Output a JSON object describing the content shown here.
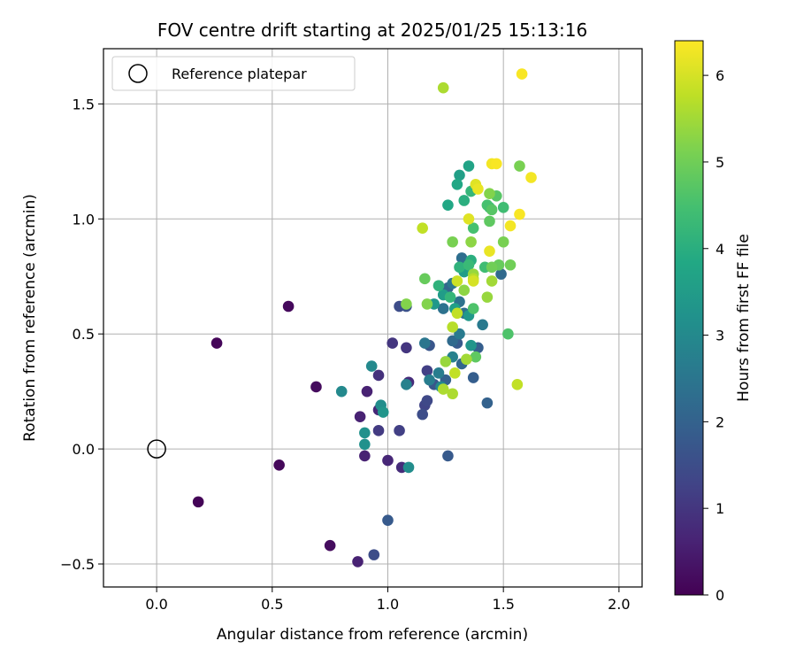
{
  "chart_data": {
    "type": "scatter",
    "title": "FOV centre drift starting at 2025/01/25 15:13:16",
    "xlabel": "Angular distance from reference (arcmin)",
    "ylabel": "Rotation from reference (arcmin)",
    "xlim": [
      -0.23,
      2.1
    ],
    "ylim": [
      -0.6,
      1.74
    ],
    "xticks": [
      0.0,
      0.5,
      1.0,
      1.5,
      2.0
    ],
    "xtick_labels": [
      "0.0",
      "0.5",
      "1.0",
      "1.5",
      "2.0"
    ],
    "yticks": [
      -0.5,
      0.0,
      0.5,
      1.0,
      1.5
    ],
    "ytick_labels": [
      "−0.5",
      "0.0",
      "0.5",
      "1.0",
      "1.5"
    ],
    "grid": true,
    "legend": {
      "position": "top-left",
      "label": "Reference platepar"
    },
    "reference_point": {
      "x": 0.0,
      "y": 0.0
    },
    "colorbar": {
      "label": "Hours from first FF file",
      "range": [
        0,
        6.4
      ],
      "ticks": [
        0,
        1,
        2,
        3,
        4,
        5,
        6
      ],
      "tick_labels": [
        "0",
        "1",
        "2",
        "3",
        "4",
        "5",
        "6"
      ],
      "colormap": "viridis"
    },
    "points": [
      {
        "x": 0.18,
        "y": -0.23,
        "h": 0.05
      },
      {
        "x": 0.26,
        "y": 0.46,
        "h": 0.1
      },
      {
        "x": 0.53,
        "y": -0.07,
        "h": 0.12
      },
      {
        "x": 0.57,
        "y": 0.62,
        "h": 0.15
      },
      {
        "x": 0.69,
        "y": 0.27,
        "h": 0.2
      },
      {
        "x": 0.75,
        "y": -0.42,
        "h": 0.2
      },
      {
        "x": 0.87,
        "y": -0.49,
        "h": 0.6
      },
      {
        "x": 0.88,
        "y": 0.14,
        "h": 0.6
      },
      {
        "x": 0.9,
        "y": -0.03,
        "h": 0.6
      },
      {
        "x": 0.91,
        "y": 0.25,
        "h": 0.6
      },
      {
        "x": 0.96,
        "y": 0.17,
        "h": 0.7
      },
      {
        "x": 1.0,
        "y": -0.05,
        "h": 0.7
      },
      {
        "x": 1.06,
        "y": -0.08,
        "h": 0.8
      },
      {
        "x": 1.09,
        "y": 0.29,
        "h": 0.8
      },
      {
        "x": 0.96,
        "y": 0.32,
        "h": 0.9
      },
      {
        "x": 1.08,
        "y": 0.44,
        "h": 1.0
      },
      {
        "x": 1.02,
        "y": 0.46,
        "h": 1.0
      },
      {
        "x": 0.96,
        "y": 0.08,
        "h": 1.1
      },
      {
        "x": 1.05,
        "y": 0.08,
        "h": 1.2
      },
      {
        "x": 1.17,
        "y": 0.34,
        "h": 1.2
      },
      {
        "x": 1.16,
        "y": 0.19,
        "h": 1.3
      },
      {
        "x": 1.17,
        "y": 0.21,
        "h": 1.4
      },
      {
        "x": 0.94,
        "y": -0.46,
        "h": 1.5
      },
      {
        "x": 1.05,
        "y": 0.62,
        "h": 1.5
      },
      {
        "x": 1.15,
        "y": 0.15,
        "h": 1.5
      },
      {
        "x": 1.08,
        "y": 0.62,
        "h": 1.6
      },
      {
        "x": 1.18,
        "y": 0.45,
        "h": 1.7
      },
      {
        "x": 1.2,
        "y": 0.28,
        "h": 1.7
      },
      {
        "x": 1.0,
        "y": -0.31,
        "h": 1.8
      },
      {
        "x": 1.26,
        "y": -0.03,
        "h": 1.8
      },
      {
        "x": 1.3,
        "y": 0.46,
        "h": 1.8
      },
      {
        "x": 1.37,
        "y": 0.31,
        "h": 1.9
      },
      {
        "x": 1.39,
        "y": 0.44,
        "h": 1.9
      },
      {
        "x": 1.25,
        "y": 0.3,
        "h": 2.0
      },
      {
        "x": 1.43,
        "y": 0.2,
        "h": 2.0
      },
      {
        "x": 1.26,
        "y": 0.7,
        "h": 2.1
      },
      {
        "x": 1.32,
        "y": 0.37,
        "h": 2.1
      },
      {
        "x": 1.28,
        "y": 0.47,
        "h": 2.2
      },
      {
        "x": 1.49,
        "y": 0.76,
        "h": 2.2
      },
      {
        "x": 1.32,
        "y": 0.83,
        "h": 2.3
      },
      {
        "x": 1.33,
        "y": 0.59,
        "h": 2.3
      },
      {
        "x": 1.24,
        "y": 0.61,
        "h": 2.4
      },
      {
        "x": 1.31,
        "y": 0.64,
        "h": 2.4
      },
      {
        "x": 1.16,
        "y": 0.46,
        "h": 2.5
      },
      {
        "x": 1.28,
        "y": 0.72,
        "h": 2.5
      },
      {
        "x": 1.31,
        "y": 0.5,
        "h": 2.6
      },
      {
        "x": 1.41,
        "y": 0.54,
        "h": 2.6
      },
      {
        "x": 1.18,
        "y": 0.3,
        "h": 2.7
      },
      {
        "x": 1.22,
        "y": 0.33,
        "h": 2.7
      },
      {
        "x": 1.08,
        "y": 0.28,
        "h": 2.8
      },
      {
        "x": 1.28,
        "y": 0.4,
        "h": 2.8
      },
      {
        "x": 0.8,
        "y": 0.25,
        "h": 3.0
      },
      {
        "x": 0.93,
        "y": 0.36,
        "h": 3.0
      },
      {
        "x": 1.23,
        "y": 0.27,
        "h": 3.0
      },
      {
        "x": 0.97,
        "y": 0.19,
        "h": 3.1
      },
      {
        "x": 1.09,
        "y": -0.08,
        "h": 3.1
      },
      {
        "x": 0.9,
        "y": 0.02,
        "h": 3.2
      },
      {
        "x": 0.9,
        "y": 0.07,
        "h": 3.2
      },
      {
        "x": 0.98,
        "y": 0.16,
        "h": 3.3
      },
      {
        "x": 1.36,
        "y": 0.45,
        "h": 3.3
      },
      {
        "x": 1.2,
        "y": 0.63,
        "h": 3.4
      },
      {
        "x": 1.35,
        "y": 0.58,
        "h": 3.4
      },
      {
        "x": 1.24,
        "y": 0.67,
        "h": 3.5
      },
      {
        "x": 1.33,
        "y": 0.77,
        "h": 3.5
      },
      {
        "x": 1.31,
        "y": 1.19,
        "h": 3.6
      },
      {
        "x": 1.29,
        "y": 0.61,
        "h": 3.6
      },
      {
        "x": 1.35,
        "y": 1.23,
        "h": 3.7
      },
      {
        "x": 1.26,
        "y": 1.06,
        "h": 3.8
      },
      {
        "x": 1.3,
        "y": 1.15,
        "h": 3.8
      },
      {
        "x": 1.38,
        "y": 1.14,
        "h": 3.9
      },
      {
        "x": 1.33,
        "y": 1.08,
        "h": 4.0
      },
      {
        "x": 1.36,
        "y": 0.82,
        "h": 4.0
      },
      {
        "x": 1.22,
        "y": 0.71,
        "h": 4.1
      },
      {
        "x": 1.31,
        "y": 0.79,
        "h": 4.1
      },
      {
        "x": 1.36,
        "y": 1.12,
        "h": 4.2
      },
      {
        "x": 1.27,
        "y": 0.66,
        "h": 4.2
      },
      {
        "x": 1.35,
        "y": 0.8,
        "h": 4.3
      },
      {
        "x": 1.44,
        "y": 1.05,
        "h": 4.3
      },
      {
        "x": 1.42,
        "y": 0.79,
        "h": 4.4
      },
      {
        "x": 1.5,
        "y": 1.05,
        "h": 4.4
      },
      {
        "x": 1.37,
        "y": 0.96,
        "h": 4.5
      },
      {
        "x": 1.43,
        "y": 1.06,
        "h": 4.5
      },
      {
        "x": 1.52,
        "y": 0.5,
        "h": 4.6
      },
      {
        "x": 1.37,
        "y": 0.61,
        "h": 4.6
      },
      {
        "x": 1.45,
        "y": 1.04,
        "h": 4.7
      },
      {
        "x": 1.47,
        "y": 1.1,
        "h": 4.7
      },
      {
        "x": 1.44,
        "y": 0.99,
        "h": 4.8
      },
      {
        "x": 1.38,
        "y": 0.4,
        "h": 4.8
      },
      {
        "x": 1.48,
        "y": 0.8,
        "h": 4.9
      },
      {
        "x": 1.16,
        "y": 0.74,
        "h": 4.9
      },
      {
        "x": 1.53,
        "y": 0.8,
        "h": 5.0
      },
      {
        "x": 1.45,
        "y": 0.79,
        "h": 5.0
      },
      {
        "x": 1.5,
        "y": 0.9,
        "h": 5.1
      },
      {
        "x": 1.57,
        "y": 1.23,
        "h": 5.1
      },
      {
        "x": 1.28,
        "y": 0.9,
        "h": 5.1
      },
      {
        "x": 1.44,
        "y": 1.11,
        "h": 5.2
      },
      {
        "x": 1.08,
        "y": 0.63,
        "h": 5.2
      },
      {
        "x": 1.17,
        "y": 0.63,
        "h": 5.2
      },
      {
        "x": 1.36,
        "y": 0.9,
        "h": 5.3
      },
      {
        "x": 1.33,
        "y": 0.69,
        "h": 5.3
      },
      {
        "x": 1.37,
        "y": 0.76,
        "h": 5.4
      },
      {
        "x": 1.43,
        "y": 0.66,
        "h": 5.4
      },
      {
        "x": 1.45,
        "y": 0.73,
        "h": 5.5
      },
      {
        "x": 1.34,
        "y": 0.39,
        "h": 5.5
      },
      {
        "x": 1.25,
        "y": 0.38,
        "h": 5.4
      },
      {
        "x": 1.24,
        "y": 0.26,
        "h": 5.6
      },
      {
        "x": 1.28,
        "y": 0.24,
        "h": 5.6
      },
      {
        "x": 1.37,
        "y": 0.74,
        "h": 5.7
      },
      {
        "x": 1.28,
        "y": 0.53,
        "h": 5.7
      },
      {
        "x": 1.29,
        "y": 0.33,
        "h": 5.8
      },
      {
        "x": 1.3,
        "y": 0.59,
        "h": 5.8
      },
      {
        "x": 1.3,
        "y": 0.73,
        "h": 5.9
      },
      {
        "x": 1.24,
        "y": 1.57,
        "h": 5.6
      },
      {
        "x": 1.56,
        "y": 0.28,
        "h": 5.8
      },
      {
        "x": 1.15,
        "y": 0.96,
        "h": 5.8
      },
      {
        "x": 1.37,
        "y": 0.73,
        "h": 6.0
      },
      {
        "x": 1.38,
        "y": 1.15,
        "h": 6.1
      },
      {
        "x": 1.35,
        "y": 1.0,
        "h": 6.1
      },
      {
        "x": 1.39,
        "y": 1.13,
        "h": 6.2
      },
      {
        "x": 1.44,
        "y": 0.86,
        "h": 6.2
      },
      {
        "x": 1.53,
        "y": 0.97,
        "h": 6.3
      },
      {
        "x": 1.45,
        "y": 1.24,
        "h": 6.3
      },
      {
        "x": 1.47,
        "y": 1.24,
        "h": 6.35
      },
      {
        "x": 1.57,
        "y": 1.02,
        "h": 6.35
      },
      {
        "x": 1.62,
        "y": 1.18,
        "h": 6.3
      },
      {
        "x": 1.58,
        "y": 1.63,
        "h": 6.35
      }
    ]
  }
}
